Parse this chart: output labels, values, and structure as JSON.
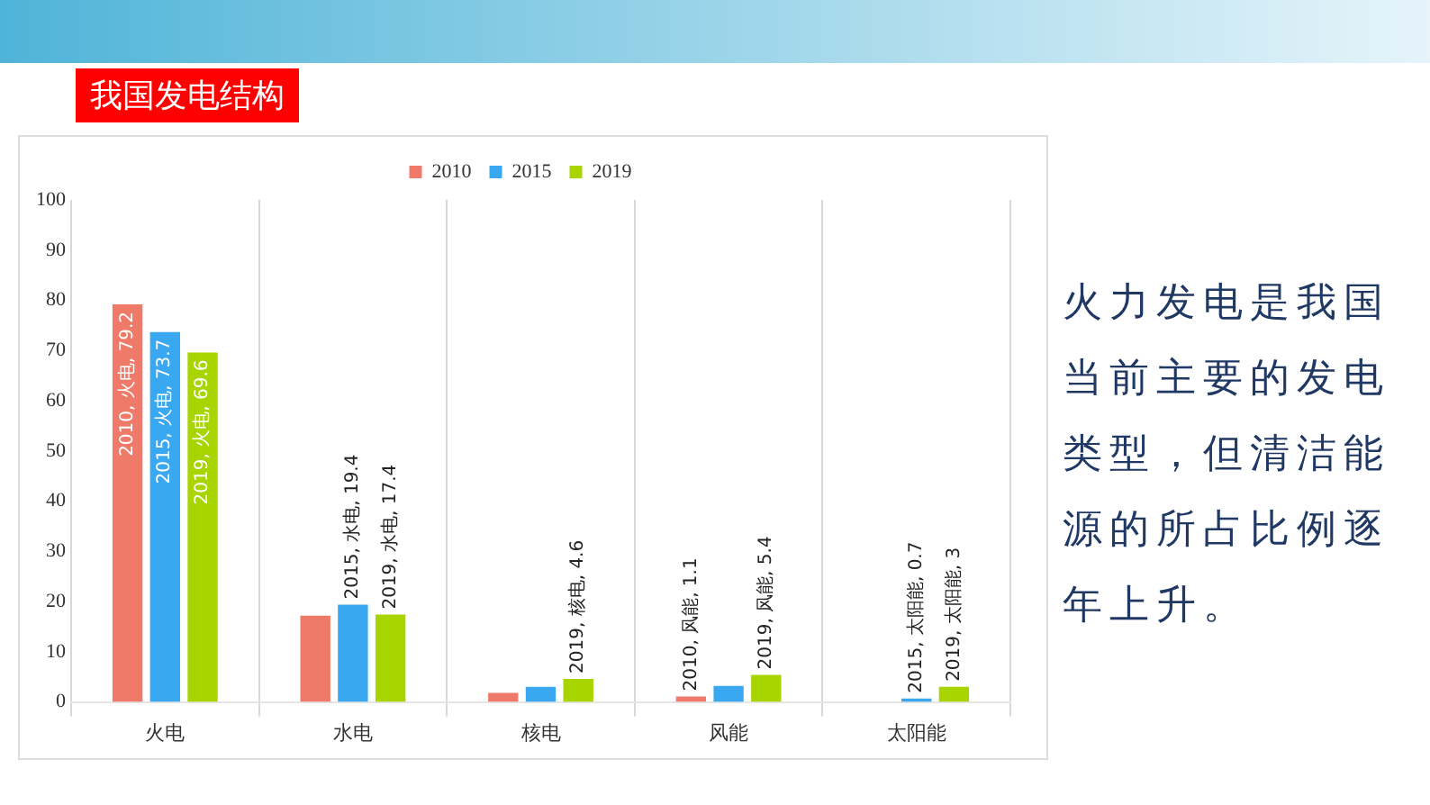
{
  "chart_data": {
    "type": "bar",
    "title": "我国发电结构",
    "categories": [
      "火电",
      "水电",
      "核电",
      "风能",
      "太阳能"
    ],
    "series": [
      {
        "name": "2010",
        "color": "#f07a6a",
        "values": [
          79.2,
          17.2,
          1.8,
          1.1,
          0
        ],
        "value_labels": [
          "2010, 火电, 79.2",
          null,
          null,
          "2010, 风能, 1.1",
          null
        ]
      },
      {
        "name": "2015",
        "color": "#3aa8f0",
        "values": [
          73.7,
          19.4,
          3,
          3.2,
          0.7
        ],
        "value_labels": [
          "2015, 火电, 73.7",
          "2015, 水电, 19.4",
          null,
          null,
          "2015, 太阳能, 0.7"
        ]
      },
      {
        "name": "2019",
        "color": "#a8d400",
        "values": [
          69.6,
          17.4,
          4.6,
          5.4,
          3
        ],
        "value_labels": [
          "2019, 火电, 69.6",
          "2019, 水电, 17.4",
          "2019, 核电, 4.6",
          "2019, 风能, 5.4",
          "2019, 太阳能, 3"
        ]
      }
    ],
    "ylim": [
      0,
      100
    ],
    "yticks": [
      0,
      10,
      20,
      30,
      40,
      50,
      60,
      70,
      80,
      90,
      100
    ],
    "grid": "x",
    "legend": "top",
    "annotations": [
      "火力发电是我国当前主要的发电类型，但清洁能源的所占比例逐年上升。"
    ]
  }
}
